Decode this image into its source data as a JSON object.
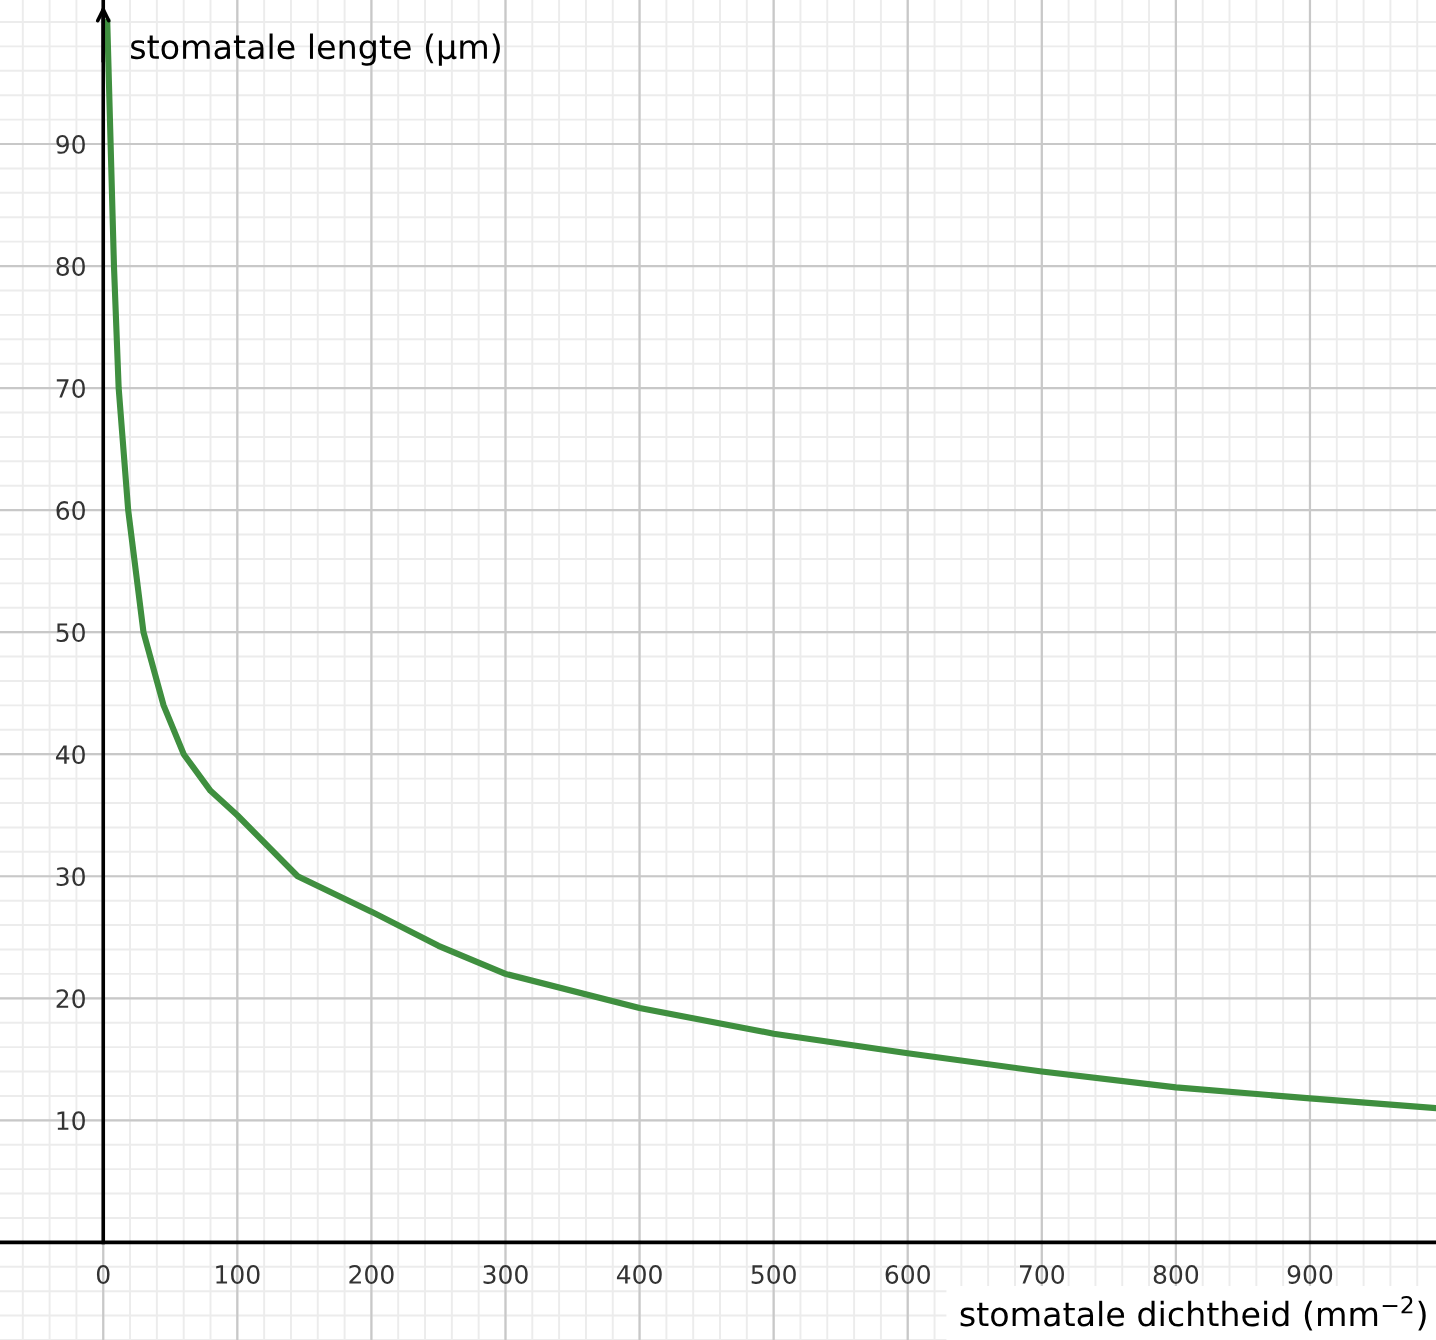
{
  "chart_data": {
    "type": "line",
    "xlabel": "stomatale dichtheid (mm$^{−2}$)",
    "ylabel": "stomatale lengte (μm)",
    "x": [
      3,
      8,
      11.5,
      18.6,
      30,
      45,
      60,
      80,
      100,
      145,
      200,
      250,
      300,
      400,
      500,
      600,
      700,
      800,
      900,
      994
    ],
    "series": [
      {
        "color": "#3f8f3f",
        "values": [
          100,
          80,
          70,
          60,
          50,
          44,
          40,
          37,
          35,
          30,
          27.1,
          24.3,
          22,
          19.2,
          17.1,
          15.5,
          14,
          12.7,
          11.8,
          11
        ]
      }
    ],
    "xlim": [
      -77,
      994
    ],
    "ylim": [
      -8,
      101.8
    ],
    "xticks": [
      0,
      100,
      200,
      300,
      400,
      500,
      600,
      700,
      800,
      900
    ],
    "yticks": [
      10,
      20,
      30,
      40,
      50,
      60,
      70,
      80,
      90
    ],
    "grid": true,
    "marker": "none",
    "line_style": "solid"
  }
}
